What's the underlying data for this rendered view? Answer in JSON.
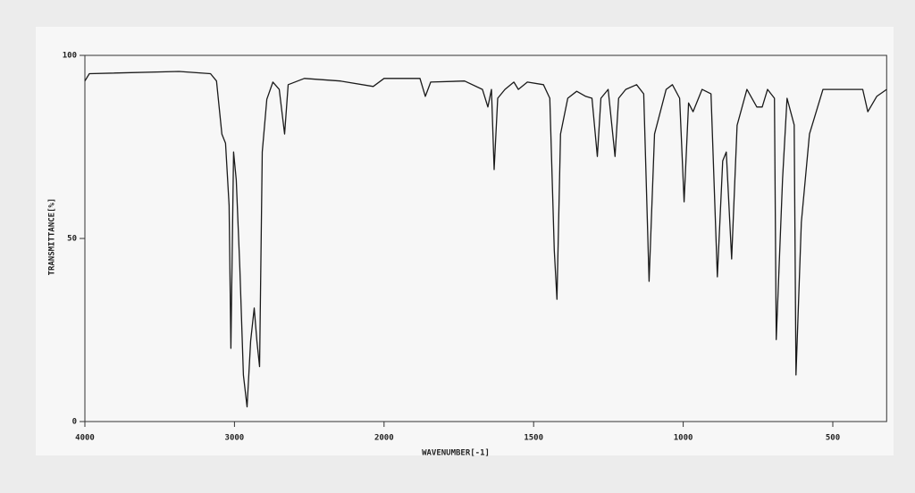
{
  "chart_data": {
    "type": "line",
    "x_label": "WAVENUMBER[-1]",
    "y_label": "TRANSMITTANCE[%]",
    "x": [
      4000,
      3970,
      3371,
      3160,
      3120,
      3084,
      3060,
      3036,
      3024,
      3006,
      2988,
      2964,
      2940,
      2916,
      2892,
      2868,
      2850,
      2832,
      2814,
      2784,
      2743,
      2701,
      2665,
      2641,
      2533,
      2293,
      2072,
      2000,
      1880,
      1862,
      1844,
      1731,
      1671,
      1653,
      1641,
      1632,
      1620,
      1596,
      1566,
      1551,
      1521,
      1467,
      1446,
      1431,
      1422,
      1410,
      1386,
      1356,
      1326,
      1305,
      1287,
      1275,
      1251,
      1228,
      1216,
      1192,
      1156,
      1132,
      1114,
      1096,
      1057,
      1036,
      1012,
      997,
      982,
      967,
      937,
      907,
      886,
      868,
      856,
      838,
      820,
      787,
      754,
      736,
      718,
      695,
      689,
      668,
      653,
      629,
      623,
      605,
      578,
      533,
      473,
      400,
      383,
      353,
      320
    ],
    "values": [
      93,
      95,
      95.6,
      95,
      93,
      78.5,
      76,
      59,
      20,
      73.6,
      66,
      42,
      12.7,
      4,
      22,
      31,
      22,
      15,
      73.6,
      88,
      92.7,
      90.7,
      78.5,
      92,
      93.7,
      93,
      91.5,
      93.7,
      93.7,
      88.8,
      92.7,
      93,
      90.7,
      85.9,
      90.7,
      68.8,
      88.3,
      90.7,
      92.7,
      90.7,
      92.7,
      92,
      88.3,
      46.8,
      33.4,
      78.5,
      88.3,
      90.2,
      88.8,
      88.3,
      72.4,
      88.3,
      90.7,
      72.4,
      88.3,
      90.7,
      92,
      89.5,
      38.3,
      78.5,
      90.7,
      92,
      88.3,
      60,
      87,
      84.6,
      90.7,
      89.5,
      39.5,
      71.2,
      73.6,
      44.4,
      80.9,
      90.7,
      85.9,
      85.9,
      90.7,
      88.3,
      22.4,
      66.3,
      88.3,
      81,
      12.7,
      54.4,
      78.5,
      90.7,
      90.7,
      90.7,
      84.6,
      88.8,
      90.7
    ],
    "color": "#1a1a1a",
    "xlim": [
      4000,
      320
    ],
    "xticks": [
      4000,
      3000,
      2000,
      1500,
      1000,
      500
    ],
    "ylim": [
      0,
      100
    ],
    "yticks": [
      0,
      50,
      100
    ]
  }
}
